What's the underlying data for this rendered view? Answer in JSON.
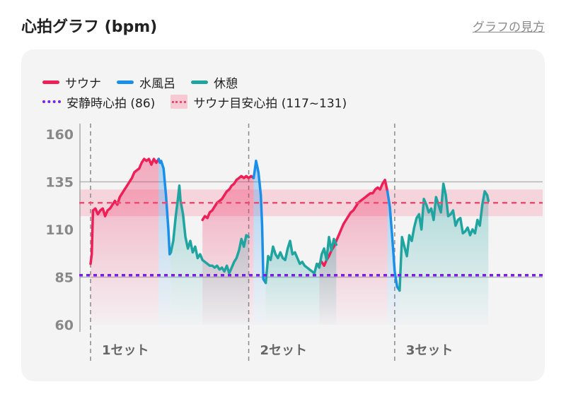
{
  "header": {
    "title": "心拍グラフ (bpm)",
    "help_link": "グラフの見方"
  },
  "legend": {
    "sauna": "サウナ",
    "cold_bath": "水風呂",
    "rest": "休憩",
    "resting_hr": "安静時心拍 (86)",
    "target_band": "サウナ目安心拍 (117~131)"
  },
  "colors": {
    "sauna": "#ee1f57",
    "cold_bath": "#1a8fea",
    "rest": "#1fa4a0",
    "resting_hr": "#7a1fe8",
    "target_band": "#f7c9d3",
    "target_line": "#ee4a72",
    "card_bg": "#f4f4f5"
  },
  "chart_data": {
    "type": "line",
    "y_ticks": [
      "160",
      "135",
      "110",
      "85",
      "60"
    ],
    "ylim": [
      60,
      160
    ],
    "grid": true,
    "resting_hr": 86,
    "target_band": [
      117,
      131
    ],
    "target_center": 124,
    "set_labels": [
      "1セット",
      "2セット",
      "3セット"
    ],
    "series": [
      {
        "name": "サウナ",
        "key": "sauna",
        "segments": [
          [
            [
              0,
              92
            ],
            [
              0.5,
              97
            ],
            [
              1,
              120
            ],
            [
              2,
              121
            ],
            [
              3,
              118
            ],
            [
              4,
              120
            ],
            [
              5,
              121
            ],
            [
              6,
              117
            ],
            [
              7,
              120
            ],
            [
              8,
              121
            ],
            [
              9,
              123
            ],
            [
              10,
              125
            ],
            [
              11,
              123
            ],
            [
              12,
              127
            ],
            [
              13,
              129
            ],
            [
              14,
              131
            ],
            [
              15,
              133
            ],
            [
              16,
              135
            ],
            [
              17,
              137
            ],
            [
              18,
              140
            ],
            [
              19,
              141
            ],
            [
              20,
              142
            ],
            [
              21,
              145
            ],
            [
              22,
              147
            ],
            [
              23,
              146
            ],
            [
              24,
              147
            ],
            [
              25,
              144
            ],
            [
              26,
              147
            ],
            [
              27,
              145
            ],
            [
              28,
              147
            ]
          ],
          [
            [
              46,
              115
            ],
            [
              47,
              117
            ],
            [
              48,
              116
            ],
            [
              49,
              119
            ],
            [
              50,
              120
            ],
            [
              51,
              122
            ],
            [
              52,
              124
            ],
            [
              53,
              125
            ],
            [
              54,
              126
            ],
            [
              55,
              128
            ],
            [
              56,
              130
            ],
            [
              57,
              131
            ],
            [
              58,
              133
            ],
            [
              59,
              134
            ],
            [
              60,
              136
            ],
            [
              61,
              137
            ],
            [
              62,
              138
            ],
            [
              63,
              137
            ],
            [
              64,
              138
            ],
            [
              65,
              137
            ],
            [
              66,
              138
            ],
            [
              67,
              137
            ]
          ],
          [
            [
              94,
              92
            ],
            [
              95,
              93
            ],
            [
              96,
              91
            ],
            [
              97,
              94
            ],
            [
              98,
              96
            ],
            [
              99,
              99
            ],
            [
              100,
              101
            ],
            [
              101,
              104
            ],
            [
              102,
              107
            ],
            [
              103,
              110
            ],
            [
              104,
              113
            ],
            [
              105,
              115
            ],
            [
              106,
              117
            ],
            [
              107,
              119
            ],
            [
              108,
              120
            ],
            [
              109,
              122
            ],
            [
              110,
              124
            ],
            [
              111,
              125
            ],
            [
              112,
              126
            ],
            [
              113,
              127
            ],
            [
              114,
              128
            ],
            [
              115,
              129
            ],
            [
              116,
              129
            ],
            [
              117,
              131
            ],
            [
              118,
              132
            ],
            [
              119,
              131
            ],
            [
              120,
              134
            ],
            [
              121,
              136
            ],
            [
              122,
              130
            ]
          ]
        ]
      },
      {
        "name": "水風呂",
        "key": "cold_bath",
        "segments": [
          [
            [
              28,
              147
            ],
            [
              28.5,
              145
            ],
            [
              29,
              146
            ],
            [
              30,
              142
            ],
            [
              31,
              128
            ],
            [
              32,
              110
            ],
            [
              32.5,
              97
            ],
            [
              33,
              98
            ]
          ],
          [
            [
              67,
              137
            ],
            [
              67.5,
              141
            ],
            [
              68,
              146
            ],
            [
              69,
              140
            ],
            [
              70,
              128
            ],
            [
              70.5,
              112
            ],
            [
              71,
              84
            ],
            [
              72,
              82
            ]
          ],
          [
            [
              122,
              130
            ],
            [
              123,
              122
            ],
            [
              124,
              106
            ],
            [
              125,
              88
            ],
            [
              126,
              80
            ],
            [
              127,
              78
            ]
          ]
        ]
      },
      {
        "name": "休憩",
        "key": "rest",
        "segments": [
          [
            [
              33,
              98
            ],
            [
              34,
              104
            ],
            [
              35,
              117
            ],
            [
              36,
              127
            ],
            [
              36.5,
              133
            ],
            [
              37,
              125
            ],
            [
              38,
              118
            ],
            [
              39,
              106
            ],
            [
              40,
              100
            ],
            [
              41,
              104
            ],
            [
              42,
              98
            ],
            [
              43,
              101
            ],
            [
              44,
              95
            ],
            [
              45,
              97
            ],
            [
              46,
              94
            ],
            [
              47,
              93
            ],
            [
              48,
              92
            ],
            [
              49,
              91
            ],
            [
              50,
              91
            ],
            [
              51,
              90
            ],
            [
              52,
              91
            ],
            [
              53,
              89
            ],
            [
              54,
              90
            ],
            [
              55,
              88
            ],
            [
              56,
              91
            ],
            [
              57,
              87
            ],
            [
              58,
              90
            ],
            [
              59,
              93
            ],
            [
              60,
              95
            ],
            [
              61,
              99
            ],
            [
              62,
              105
            ],
            [
              63,
              101
            ],
            [
              64,
              107
            ],
            [
              65,
              106
            ]
          ],
          [
            [
              72,
              82
            ],
            [
              73,
              96
            ],
            [
              74,
              94
            ],
            [
              75,
              101
            ],
            [
              76,
              97
            ],
            [
              77,
              95
            ],
            [
              78,
              98
            ],
            [
              79,
              95
            ],
            [
              80,
              94
            ],
            [
              81,
              100
            ],
            [
              82,
              104
            ],
            [
              83,
              97
            ],
            [
              84,
              98
            ],
            [
              85,
              95
            ],
            [
              86,
              92
            ],
            [
              87,
              93
            ],
            [
              88,
              91
            ],
            [
              89,
              90
            ],
            [
              90,
              89
            ],
            [
              91,
              88
            ],
            [
              92,
              87
            ],
            [
              93,
              92
            ],
            [
              94,
              90
            ],
            [
              95,
              97
            ],
            [
              96,
              100
            ],
            [
              97,
              94
            ],
            [
              98,
              106
            ],
            [
              99,
              99
            ],
            [
              100,
              105
            ],
            [
              101,
              102
            ]
          ],
          [
            [
              127,
              78
            ],
            [
              128,
              106
            ],
            [
              129,
              101
            ],
            [
              130,
              96
            ],
            [
              131,
              107
            ],
            [
              132,
              104
            ],
            [
              133,
              111
            ],
            [
              134,
              116
            ],
            [
              135,
              118
            ],
            [
              136,
              110
            ],
            [
              137,
              126
            ],
            [
              138,
              123
            ],
            [
              139,
              119
            ],
            [
              140,
              121
            ],
            [
              141,
              115
            ],
            [
              142,
              127
            ],
            [
              143,
              123
            ],
            [
              144,
              119
            ],
            [
              145,
              134
            ],
            [
              146,
              128
            ],
            [
              147,
              117
            ],
            [
              148,
              118
            ],
            [
              149,
              120
            ],
            [
              150,
              112
            ],
            [
              151,
              115
            ],
            [
              152,
              116
            ],
            [
              153,
              108
            ],
            [
              154,
              109
            ],
            [
              155,
              111
            ],
            [
              156,
              107
            ],
            [
              157,
              110
            ],
            [
              158,
              108
            ],
            [
              159,
              115
            ],
            [
              160,
              112
            ],
            [
              161,
              123
            ],
            [
              162,
              130
            ],
            [
              163,
              128
            ],
            [
              163.5,
              125
            ]
          ]
        ]
      }
    ]
  }
}
